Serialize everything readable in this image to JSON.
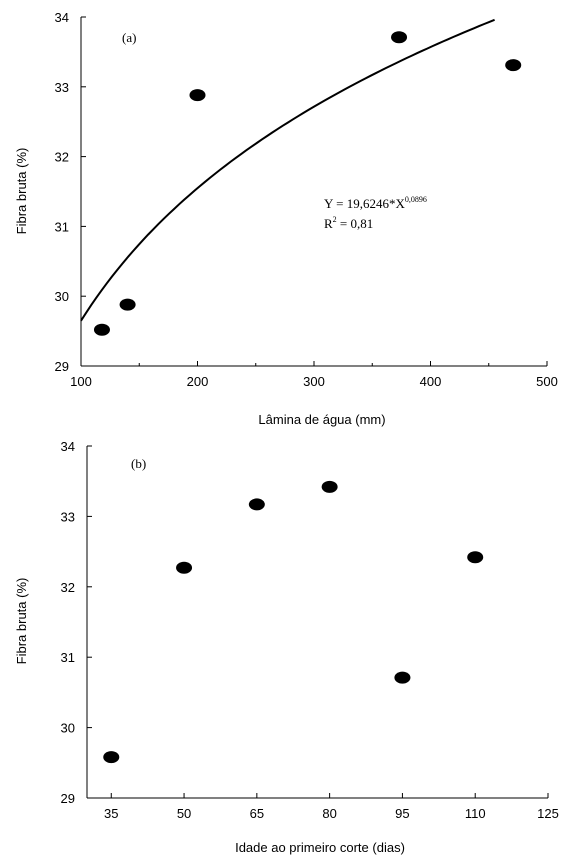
{
  "chart_data": [
    {
      "type": "scatter",
      "panel_label": "(a)",
      "xlabel": "Lâmina de água (mm)",
      "ylabel": "Fibra bruta (%)",
      "xlim": [
        100,
        500
      ],
      "ylim": [
        29,
        34
      ],
      "xticks": [
        100,
        200,
        300,
        400,
        500
      ],
      "yticks": [
        29,
        30,
        31,
        32,
        33,
        34
      ],
      "grid": false,
      "points": [
        {
          "x": 118,
          "y": 29.52
        },
        {
          "x": 140,
          "y": 29.88
        },
        {
          "x": 200,
          "y": 32.88
        },
        {
          "x": 373,
          "y": 33.71
        },
        {
          "x": 471,
          "y": 33.31
        }
      ],
      "fit": {
        "coef": 19.6246,
        "exponent": 0.0896,
        "x_range": [
          100,
          455
        ]
      },
      "equation": {
        "lhs": "Y = 19,6246*X",
        "exp": "0,0896",
        "r2_lhs": "R",
        "r2_sup": "2",
        "r2_rhs": " = 0,81"
      }
    },
    {
      "type": "scatter",
      "panel_label": "(b)",
      "xlabel": "Idade ao primeiro corte (dias)",
      "ylabel": "Fibra bruta (%)",
      "xlim": [
        30,
        125
      ],
      "ylim": [
        29,
        34
      ],
      "xticks": [
        35,
        50,
        65,
        80,
        95,
        110,
        125
      ],
      "yticks": [
        29,
        30,
        31,
        32,
        33,
        34
      ],
      "grid": false,
      "points": [
        {
          "x": 35,
          "y": 29.58
        },
        {
          "x": 50,
          "y": 32.27
        },
        {
          "x": 65,
          "y": 33.17
        },
        {
          "x": 80,
          "y": 33.42
        },
        {
          "x": 95,
          "y": 30.71
        },
        {
          "x": 110,
          "y": 32.42
        }
      ]
    }
  ]
}
